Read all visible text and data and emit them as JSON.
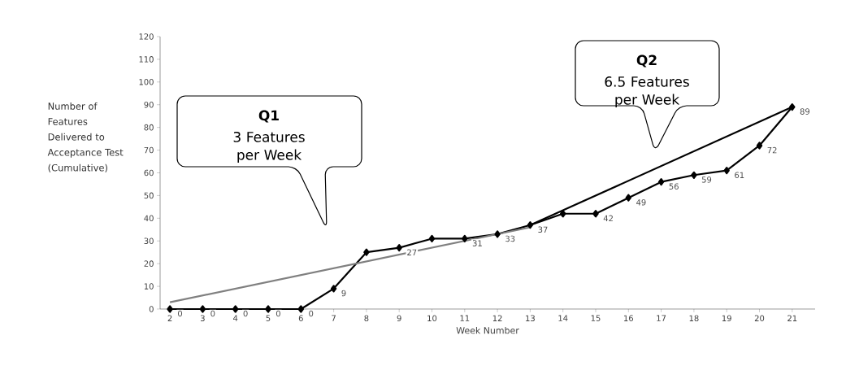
{
  "chart_data": {
    "type": "line",
    "xlabel": "Week Number",
    "ylabel": "Number of Features Delivered to Acceptance Test (Cumulative)",
    "categories": [
      "2",
      "3",
      "4",
      "5",
      "6",
      "7",
      "8",
      "9",
      "10",
      "11",
      "12",
      "13",
      "14",
      "15",
      "16",
      "17",
      "18",
      "19",
      "20",
      "21"
    ],
    "series": [
      {
        "color": "#000000",
        "marker": "diamond",
        "values": [
          0,
          0,
          0,
          0,
          0,
          9,
          25,
          27,
          31,
          31,
          33,
          37,
          42,
          42,
          49,
          56,
          59,
          61,
          72,
          89
        ],
        "value_labels": [
          "0",
          "0",
          "0",
          "0",
          "0",
          "9",
          null,
          "27",
          null,
          "31",
          "33",
          "37",
          null,
          "42",
          "49",
          "56",
          "59",
          "61",
          "72",
          "89"
        ]
      },
      {
        "type": "line",
        "color": "#808080",
        "marker": "none",
        "values": [
          3,
          null,
          null,
          null,
          null,
          null,
          null,
          null,
          null,
          null,
          null,
          36,
          null,
          null,
          null,
          null,
          null,
          null,
          null,
          null
        ]
      },
      {
        "type": "line",
        "color": "#000000",
        "marker": "none",
        "values": [
          null,
          null,
          null,
          null,
          null,
          null,
          null,
          null,
          null,
          null,
          null,
          37,
          null,
          null,
          null,
          null,
          null,
          null,
          null,
          89
        ]
      }
    ],
    "ylim": [
      0,
      120
    ],
    "yticks": [
      0,
      10,
      20,
      30,
      40,
      50,
      60,
      70,
      80,
      90,
      100,
      110,
      120
    ],
    "grid": false,
    "annotations": [
      "Q1",
      "3 Features per Week",
      "Q2",
      "6.5 Features per Week"
    ]
  }
}
